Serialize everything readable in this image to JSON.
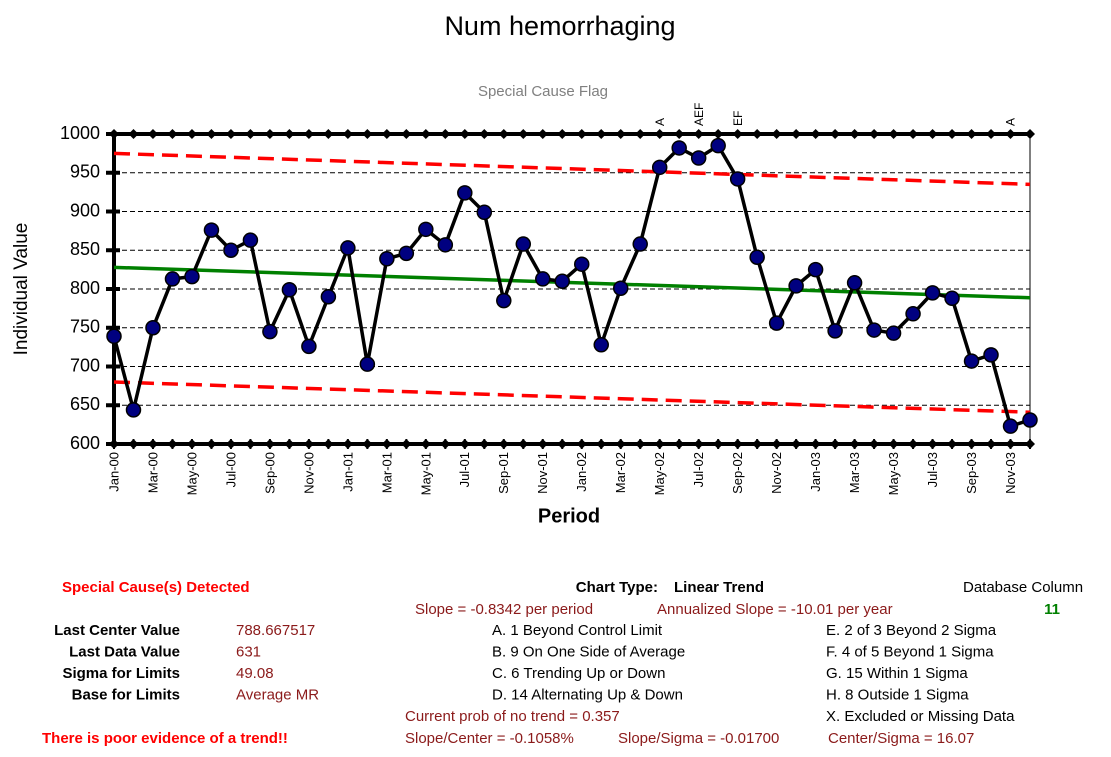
{
  "chart_data": {
    "type": "line",
    "title": "Num hemorrhaging",
    "subtitle": "Special Cause Flag",
    "y_label": "Individual Value",
    "x_label": "Period",
    "categories": [
      "Jan-00",
      null,
      "Mar-00",
      null,
      "May-00",
      null,
      "Jul-00",
      null,
      "Sep-00",
      null,
      "Nov-00",
      null,
      "Jan-01",
      null,
      "Mar-01",
      null,
      "May-01",
      null,
      "Jul-01",
      null,
      "Sep-01",
      null,
      "Nov-01",
      null,
      "Jan-02",
      null,
      "Mar-02",
      null,
      "May-02",
      null,
      "Jul-02",
      null,
      "Sep-02",
      null,
      "Nov-02",
      null,
      "Jan-03",
      null,
      "Mar-03",
      null,
      "May-03",
      null,
      "Jul-03",
      null,
      "Sep-03",
      null,
      "Nov-03",
      null
    ],
    "series": [
      {
        "color": "#000000",
        "marker_color": "#000080",
        "values": [
          739,
          644,
          750,
          813,
          816,
          876,
          850,
          863,
          745,
          799,
          726,
          790,
          853,
          703,
          839,
          846,
          877,
          857,
          924,
          899,
          785,
          858,
          813,
          810,
          832,
          728,
          801,
          858,
          957,
          982,
          969,
          985,
          942,
          841,
          756,
          804,
          825,
          746,
          808,
          747,
          743,
          768,
          795,
          788,
          707,
          715,
          623,
          631
        ]
      }
    ],
    "flags": [
      null,
      null,
      null,
      null,
      null,
      null,
      null,
      null,
      null,
      null,
      null,
      null,
      null,
      null,
      null,
      null,
      null,
      null,
      null,
      null,
      null,
      null,
      null,
      null,
      null,
      null,
      null,
      null,
      "A",
      null,
      "AEF",
      null,
      "EF",
      null,
      null,
      null,
      null,
      null,
      null,
      null,
      null,
      null,
      null,
      null,
      null,
      null,
      "A",
      null
    ],
    "center_line": {
      "start": 827.9,
      "end": 788.7,
      "color": "#008000"
    },
    "upper_limit": {
      "start": 975,
      "end": 935,
      "color": "#ff0000"
    },
    "lower_limit": {
      "start": 680,
      "end": 641,
      "color": "#ff0000"
    },
    "ylim": [
      600,
      1000
    ],
    "yticks": [
      600,
      650,
      700,
      750,
      800,
      850,
      900,
      950,
      1000
    ],
    "grid": true
  },
  "panel": {
    "detected": "Special Cause(s) Detected",
    "chart_type_label": "Chart Type:",
    "chart_type": "Linear Trend",
    "db_column_label": "Database Column",
    "db_column": "11",
    "slope": "Slope = -0.8342 per period",
    "annual_slope": "Annualized Slope = -10.01 per year",
    "stats": [
      {
        "label": "Last Center Value",
        "value": "788.667517"
      },
      {
        "label": "Last Data Value",
        "value": "631"
      },
      {
        "label": "Sigma for Limits",
        "value": "49.08"
      },
      {
        "label": "Base for Limits",
        "value": "Average MR"
      }
    ],
    "rules_left": [
      "A.  1 Beyond Control Limit",
      "B.  9 On One Side of Average",
      "C.  6 Trending Up or Down",
      "D.  14 Alternating  Up & Down"
    ],
    "rules_right": [
      "E.  2 of 3 Beyond 2 Sigma",
      "F.  4 of 5 Beyond 1 Sigma",
      "G.  15 Within 1 Sigma",
      "H.  8 Outside 1 Sigma",
      "X.  Excluded or Missing Data"
    ],
    "prob": "Current prob of no trend = 0.357",
    "evidence": "There is poor evidence of a trend!!",
    "slope_center": "Slope/Center = -0.1058%",
    "slope_sigma": "Slope/Sigma = -0.01700",
    "center_sigma": "Center/Sigma = 16.07"
  }
}
